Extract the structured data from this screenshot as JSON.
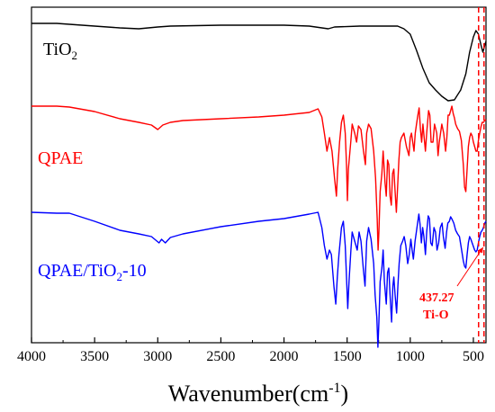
{
  "chart_data": {
    "type": "line",
    "xlabel_main": "Wavenumber(cm",
    "xlabel_sup": "-1",
    "xlabel_tail": ")",
    "ylabel": "",
    "xlim": [
      4000,
      400
    ],
    "x_ticks": [
      4000,
      3500,
      3000,
      2500,
      2000,
      1500,
      1000,
      500
    ],
    "x_tick_labels": [
      "4000",
      "3500",
      "3000",
      "2500",
      "2000",
      "1500",
      "1000",
      "500"
    ],
    "grid": false,
    "series": [
      {
        "label_main": "TiO",
        "label_sub": "2",
        "label_tail": "",
        "color": "#000000",
        "points": [
          [
            4000,
            18
          ],
          [
            3800,
            18
          ],
          [
            3700,
            19
          ],
          [
            3500,
            21
          ],
          [
            3300,
            23
          ],
          [
            3150,
            24
          ],
          [
            3000,
            22
          ],
          [
            2900,
            21
          ],
          [
            2500,
            20
          ],
          [
            2000,
            20
          ],
          [
            1800,
            21
          ],
          [
            1650,
            24
          ],
          [
            1600,
            22
          ],
          [
            1400,
            21
          ],
          [
            1200,
            21
          ],
          [
            1100,
            21
          ],
          [
            1050,
            24
          ],
          [
            1000,
            30
          ],
          [
            950,
            48
          ],
          [
            900,
            68
          ],
          [
            850,
            84
          ],
          [
            800,
            92
          ],
          [
            750,
            99
          ],
          [
            700,
            104
          ],
          [
            650,
            103
          ],
          [
            600,
            92
          ],
          [
            560,
            74
          ],
          [
            530,
            50
          ],
          [
            500,
            33
          ],
          [
            480,
            26
          ],
          [
            460,
            30
          ],
          [
            440,
            42
          ],
          [
            425,
            50
          ],
          [
            415,
            45
          ],
          [
            405,
            40
          ],
          [
            400,
            38
          ]
        ]
      },
      {
        "label_main": "QPAE",
        "label_sub": "",
        "label_tail": "",
        "color": "#ff0000",
        "points": [
          [
            4000,
            110
          ],
          [
            3800,
            110
          ],
          [
            3700,
            111
          ],
          [
            3500,
            116
          ],
          [
            3300,
            124
          ],
          [
            3150,
            128
          ],
          [
            3050,
            131
          ],
          [
            3000,
            136
          ],
          [
            2960,
            131
          ],
          [
            2900,
            128
          ],
          [
            2800,
            126
          ],
          [
            2500,
            124
          ],
          [
            2200,
            122
          ],
          [
            2000,
            120
          ],
          [
            1800,
            117
          ],
          [
            1730,
            113
          ],
          [
            1700,
            122
          ],
          [
            1680,
            140
          ],
          [
            1660,
            160
          ],
          [
            1640,
            145
          ],
          [
            1620,
            160
          ],
          [
            1600,
            190
          ],
          [
            1585,
            210
          ],
          [
            1575,
            180
          ],
          [
            1560,
            150
          ],
          [
            1545,
            128
          ],
          [
            1530,
            120
          ],
          [
            1515,
            140
          ],
          [
            1505,
            175
          ],
          [
            1498,
            215
          ],
          [
            1490,
            180
          ],
          [
            1470,
            148
          ],
          [
            1460,
            130
          ],
          [
            1440,
            140
          ],
          [
            1425,
            150
          ],
          [
            1410,
            132
          ],
          [
            1390,
            136
          ],
          [
            1370,
            160
          ],
          [
            1355,
            175
          ],
          [
            1345,
            140
          ],
          [
            1330,
            130
          ],
          [
            1310,
            135
          ],
          [
            1290,
            160
          ],
          [
            1275,
            190
          ],
          [
            1262,
            235
          ],
          [
            1255,
            270
          ],
          [
            1248,
            250
          ],
          [
            1238,
            205
          ],
          [
            1225,
            185
          ],
          [
            1215,
            160
          ],
          [
            1200,
            195
          ],
          [
            1190,
            210
          ],
          [
            1180,
            170
          ],
          [
            1170,
            175
          ],
          [
            1160,
            210
          ],
          [
            1150,
            220
          ],
          [
            1140,
            185
          ],
          [
            1130,
            180
          ],
          [
            1120,
            205
          ],
          [
            1110,
            228
          ],
          [
            1100,
            200
          ],
          [
            1090,
            170
          ],
          [
            1080,
            150
          ],
          [
            1070,
            145
          ],
          [
            1050,
            140
          ],
          [
            1030,
            155
          ],
          [
            1010,
            165
          ],
          [
            1000,
            145
          ],
          [
            990,
            140
          ],
          [
            980,
            150
          ],
          [
            970,
            160
          ],
          [
            960,
            140
          ],
          [
            950,
            130
          ],
          [
            940,
            120
          ],
          [
            930,
            112
          ],
          [
            920,
            135
          ],
          [
            910,
            150
          ],
          [
            900,
            130
          ],
          [
            890,
            145
          ],
          [
            880,
            160
          ],
          [
            870,
            140
          ],
          [
            855,
            115
          ],
          [
            845,
            120
          ],
          [
            835,
            150
          ],
          [
            820,
            150
          ],
          [
            808,
            130
          ],
          [
            790,
            140
          ],
          [
            780,
            165
          ],
          [
            770,
            150
          ],
          [
            750,
            130
          ],
          [
            735,
            140
          ],
          [
            720,
            160
          ],
          [
            710,
            145
          ],
          [
            700,
            120
          ],
          [
            690,
            120
          ],
          [
            680,
            115
          ],
          [
            670,
            110
          ],
          [
            660,
            118
          ],
          [
            650,
            123
          ],
          [
            640,
            130
          ],
          [
            625,
            135
          ],
          [
            610,
            138
          ],
          [
            595,
            148
          ],
          [
            580,
            175
          ],
          [
            570,
            200
          ],
          [
            560,
            205
          ],
          [
            550,
            180
          ],
          [
            540,
            155
          ],
          [
            530,
            145
          ],
          [
            520,
            140
          ],
          [
            510,
            143
          ],
          [
            500,
            150
          ],
          [
            490,
            155
          ],
          [
            480,
            160
          ],
          [
            470,
            160
          ],
          [
            460,
            148
          ],
          [
            450,
            140
          ],
          [
            440,
            133
          ],
          [
            430,
            128
          ],
          [
            420,
            128
          ],
          [
            410,
            126
          ],
          [
            400,
            125
          ]
        ]
      },
      {
        "label_main": "QPAE/TiO",
        "label_sub": "2",
        "label_tail": "-10",
        "color": "#0000ff",
        "points": [
          [
            4000,
            228
          ],
          [
            3800,
            229
          ],
          [
            3700,
            229
          ],
          [
            3500,
            238
          ],
          [
            3300,
            248
          ],
          [
            3150,
            252
          ],
          [
            3050,
            255
          ],
          [
            2990,
            262
          ],
          [
            2970,
            258
          ],
          [
            2940,
            262
          ],
          [
            2900,
            256
          ],
          [
            2800,
            252
          ],
          [
            2500,
            244
          ],
          [
            2200,
            238
          ],
          [
            2000,
            235
          ],
          [
            1800,
            230
          ],
          [
            1730,
            228
          ],
          [
            1700,
            245
          ],
          [
            1680,
            265
          ],
          [
            1660,
            280
          ],
          [
            1640,
            270
          ],
          [
            1625,
            275
          ],
          [
            1605,
            310
          ],
          [
            1590,
            330
          ],
          [
            1578,
            300
          ],
          [
            1565,
            275
          ],
          [
            1545,
            245
          ],
          [
            1530,
            238
          ],
          [
            1515,
            265
          ],
          [
            1505,
            300
          ],
          [
            1495,
            335
          ],
          [
            1485,
            305
          ],
          [
            1470,
            270
          ],
          [
            1460,
            250
          ],
          [
            1440,
            260
          ],
          [
            1420,
            270
          ],
          [
            1405,
            250
          ],
          [
            1390,
            260
          ],
          [
            1372,
            290
          ],
          [
            1358,
            310
          ],
          [
            1345,
            260
          ],
          [
            1330,
            245
          ],
          [
            1310,
            258
          ],
          [
            1290,
            285
          ],
          [
            1278,
            320
          ],
          [
            1265,
            345
          ],
          [
            1256,
            378
          ],
          [
            1248,
            350
          ],
          [
            1238,
            305
          ],
          [
            1225,
            290
          ],
          [
            1215,
            270
          ],
          [
            1205,
            305
          ],
          [
            1190,
            330
          ],
          [
            1180,
            295
          ],
          [
            1170,
            290
          ],
          [
            1160,
            320
          ],
          [
            1148,
            350
          ],
          [
            1138,
            310
          ],
          [
            1130,
            300
          ],
          [
            1120,
            320
          ],
          [
            1108,
            340
          ],
          [
            1098,
            310
          ],
          [
            1088,
            285
          ],
          [
            1075,
            265
          ],
          [
            1060,
            260
          ],
          [
            1048,
            255
          ],
          [
            1035,
            265
          ],
          [
            1020,
            285
          ],
          [
            1008,
            275
          ],
          [
            995,
            258
          ],
          [
            985,
            270
          ],
          [
            975,
            280
          ],
          [
            962,
            260
          ],
          [
            952,
            250
          ],
          [
            942,
            240
          ],
          [
            932,
            230
          ],
          [
            922,
            242
          ],
          [
            912,
            262
          ],
          [
            902,
            245
          ],
          [
            892,
            255
          ],
          [
            880,
            275
          ],
          [
            870,
            250
          ],
          [
            858,
            232
          ],
          [
            848,
            235
          ],
          [
            838,
            262
          ],
          [
            826,
            265
          ],
          [
            812,
            245
          ],
          [
            800,
            250
          ],
          [
            788,
            270
          ],
          [
            775,
            262
          ],
          [
            762,
            245
          ],
          [
            748,
            240
          ],
          [
            738,
            255
          ],
          [
            724,
            268
          ],
          [
            712,
            250
          ],
          [
            702,
            240
          ],
          [
            690,
            238
          ],
          [
            680,
            233
          ],
          [
            668,
            236
          ],
          [
            655,
            240
          ],
          [
            640,
            248
          ],
          [
            625,
            252
          ],
          [
            610,
            255
          ],
          [
            595,
            268
          ],
          [
            580,
            282
          ],
          [
            570,
            288
          ],
          [
            560,
            290
          ],
          [
            550,
            275
          ],
          [
            540,
            262
          ],
          [
            530,
            255
          ],
          [
            520,
            258
          ],
          [
            510,
            262
          ],
          [
            500,
            266
          ],
          [
            490,
            270
          ],
          [
            480,
            272
          ],
          [
            470,
            270
          ],
          [
            460,
            262
          ],
          [
            450,
            255
          ],
          [
            440,
            250
          ],
          [
            430,
            248
          ],
          [
            420,
            245
          ],
          [
            410,
            240
          ],
          [
            400,
            238
          ]
        ]
      }
    ],
    "annotations": [
      {
        "text_value": "437.27",
        "text_name": "Ti-O",
        "wavenumber": 437.27
      }
    ]
  }
}
